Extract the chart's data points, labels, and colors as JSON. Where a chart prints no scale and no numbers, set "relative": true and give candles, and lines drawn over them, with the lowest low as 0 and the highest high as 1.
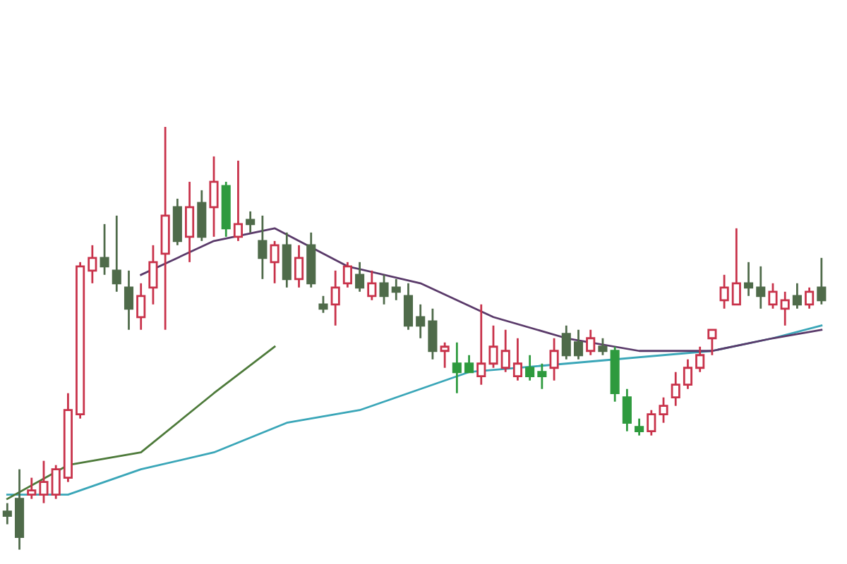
{
  "chart_data": {
    "type": "candlestick",
    "relative": true,
    "categories": [
      null,
      null,
      null,
      null,
      null,
      null,
      null,
      null,
      null,
      null,
      null,
      null,
      null,
      null,
      null,
      null,
      null,
      null,
      null,
      null,
      null,
      null,
      null,
      null,
      null,
      null,
      null,
      null,
      null,
      null,
      null,
      null,
      null,
      null,
      null,
      null,
      null,
      null,
      null,
      null,
      null,
      null,
      null,
      null,
      null,
      null,
      null,
      null,
      null,
      null,
      null,
      null,
      null,
      null,
      null,
      null,
      null,
      null,
      null,
      null,
      null,
      null,
      null,
      null,
      null,
      null,
      null,
      null
    ],
    "ohlc": [
      [
        0.09,
        0.11,
        0.06,
        0.08
      ],
      [
        0.12,
        0.19,
        0,
        0.03
      ],
      [
        0.13,
        0.17,
        0.12,
        0.14
      ],
      [
        0.13,
        0.21,
        0.11,
        0.16
      ],
      [
        0.13,
        0.2,
        0.12,
        0.19
      ],
      [
        0.17,
        0.37,
        0.16,
        0.33
      ],
      [
        0.32,
        0.68,
        0.31,
        0.67
      ],
      [
        0.66,
        0.72,
        0.63,
        0.69
      ],
      [
        0.69,
        0.77,
        0.65,
        0.67
      ],
      [
        0.66,
        0.79,
        0.61,
        0.63
      ],
      [
        0.62,
        0.66,
        0.52,
        0.57
      ],
      [
        0.55,
        0.63,
        0.52,
        0.6
      ],
      [
        0.62,
        0.72,
        0.58,
        0.68
      ],
      [
        0.7,
        1,
        0.52,
        0.79
      ],
      [
        0.81,
        0.83,
        0.72,
        0.73
      ],
      [
        0.74,
        0.87,
        0.68,
        0.81
      ],
      [
        0.82,
        0.85,
        0.73,
        0.74
      ],
      [
        0.81,
        0.93,
        0.74,
        0.87
      ],
      [
        0.86,
        0.87,
        0.74,
        0.76
      ],
      [
        0.74,
        0.92,
        0.73,
        0.77
      ],
      [
        0.78,
        0.8,
        0.75,
        0.77
      ],
      [
        0.73,
        0.79,
        0.64,
        0.69
      ],
      [
        0.68,
        0.73,
        0.63,
        0.72
      ],
      [
        0.72,
        0.75,
        0.62,
        0.64
      ],
      [
        0.64,
        0.72,
        0.62,
        0.69
      ],
      [
        0.72,
        0.75,
        0.62,
        0.63
      ],
      [
        0.58,
        0.6,
        0.56,
        0.57
      ],
      [
        0.58,
        0.66,
        0.53,
        0.62
      ],
      [
        0.63,
        0.68,
        0.62,
        0.67
      ],
      [
        0.65,
        0.68,
        0.61,
        0.62
      ],
      [
        0.6,
        0.66,
        0.59,
        0.63
      ],
      [
        0.63,
        0.65,
        0.58,
        0.6
      ],
      [
        0.62,
        0.64,
        0.59,
        0.61
      ],
      [
        0.6,
        0.63,
        0.52,
        0.53
      ],
      [
        0.55,
        0.58,
        0.5,
        0.53
      ],
      [
        0.54,
        0.57,
        0.45,
        0.47
      ],
      [
        0.47,
        0.49,
        0.43,
        0.48
      ],
      [
        0.44,
        0.49,
        0.37,
        0.42
      ],
      [
        0.44,
        0.46,
        0.42,
        0.42
      ],
      [
        0.41,
        0.58,
        0.39,
        0.44
      ],
      [
        0.44,
        0.53,
        0.43,
        0.48
      ],
      [
        0.43,
        0.52,
        0.42,
        0.47
      ],
      [
        0.41,
        0.5,
        0.4,
        0.44
      ],
      [
        0.43,
        0.46,
        0.4,
        0.41
      ],
      [
        0.42,
        0.44,
        0.38,
        0.41
      ],
      [
        0.43,
        0.5,
        0.4,
        0.47
      ],
      [
        0.51,
        0.53,
        0.45,
        0.46
      ],
      [
        0.49,
        0.52,
        0.45,
        0.46
      ],
      [
        0.47,
        0.52,
        0.46,
        0.5
      ],
      [
        0.48,
        0.5,
        0.46,
        0.47
      ],
      [
        0.47,
        0.48,
        0.35,
        0.37
      ],
      [
        0.36,
        0.38,
        0.28,
        0.3
      ],
      [
        0.29,
        0.31,
        0.27,
        0.28
      ],
      [
        0.28,
        0.33,
        0.27,
        0.32
      ],
      [
        0.32,
        0.36,
        0.3,
        0.34
      ],
      [
        0.36,
        0.42,
        0.34,
        0.39
      ],
      [
        0.39,
        0.45,
        0.38,
        0.43
      ],
      [
        0.43,
        0.48,
        0.42,
        0.46
      ],
      [
        0.5,
        0.52,
        0.46,
        0.52
      ],
      [
        0.59,
        0.65,
        0.57,
        0.62
      ],
      [
        0.58,
        0.76,
        0.58,
        0.63
      ],
      [
        0.63,
        0.68,
        0.6,
        0.62
      ],
      [
        0.62,
        0.67,
        0.57,
        0.6
      ],
      [
        0.58,
        0.63,
        0.57,
        0.61
      ],
      [
        0.57,
        0.61,
        0.53,
        0.59
      ],
      [
        0.6,
        0.63,
        0.57,
        0.58
      ],
      [
        0.58,
        0.62,
        0.57,
        0.61
      ],
      [
        0.62,
        0.69,
        0.58,
        0.59
      ]
    ],
    "colors": [
      "#4f6b4a",
      "#4f6b4a",
      "#c8324a",
      "#c8324a",
      "#c8324a",
      "#c8324a",
      "#c8324a",
      "#c8324a",
      "#4f6b4a",
      "#4f6b4a",
      "#4f6b4a",
      "#c8324a",
      "#c8324a",
      "#c8324a",
      "#4f6b4a",
      "#c8324a",
      "#4f6b4a",
      "#c8324a",
      "#2e9a3e",
      "#c8324a",
      "#4f6b4a",
      "#4f6b4a",
      "#c8324a",
      "#4f6b4a",
      "#c8324a",
      "#4f6b4a",
      "#4f6b4a",
      "#c8324a",
      "#c8324a",
      "#4f6b4a",
      "#c8324a",
      "#4f6b4a",
      "#4f6b4a",
      "#4f6b4a",
      "#4f6b4a",
      "#4f6b4a",
      "#c8324a",
      "#2e9a3e",
      "#2e9a3e",
      "#c8324a",
      "#c8324a",
      "#c8324a",
      "#c8324a",
      "#2e9a3e",
      "#2e9a3e",
      "#c8324a",
      "#4f6b4a",
      "#4f6b4a",
      "#c8324a",
      "#4f6b4a",
      "#2e9a3e",
      "#2e9a3e",
      "#2e9a3e",
      "#c8324a",
      "#c8324a",
      "#c8324a",
      "#c8324a",
      "#c8324a",
      "#c8324a",
      "#c8324a",
      "#c8324a",
      "#4f6b4a",
      "#4f6b4a",
      "#c8324a",
      "#c8324a",
      "#4f6b4a",
      "#c8324a",
      "#4f6b4a"
    ],
    "series": [
      {
        "type": "line",
        "color": "#3aa6b8",
        "values": [
          0.13,
          null,
          null,
          null,
          null,
          0.13,
          null,
          null,
          null,
          null,
          null,
          0.19,
          null,
          null,
          null,
          null,
          null,
          0.23,
          null,
          null,
          null,
          null,
          null,
          0.3,
          null,
          null,
          null,
          null,
          null,
          0.33,
          null,
          null,
          null,
          null,
          0.38,
          null,
          null,
          null,
          0.42,
          null,
          null,
          null,
          null,
          null,
          null,
          null,
          0.44,
          null,
          null,
          null,
          0.45,
          null,
          null,
          null,
          null,
          null,
          null,
          null,
          0.47,
          null,
          null,
          null,
          null,
          0.5,
          null,
          null,
          null,
          0.53
        ]
      },
      {
        "type": "line",
        "color": "#4d7a3a",
        "values": [
          0.12,
          null,
          null,
          null,
          null,
          0.2,
          null,
          null,
          null,
          null,
          null,
          0.23,
          null,
          null,
          null,
          null,
          null,
          0.37,
          null,
          null,
          null,
          null,
          0.48,
          null,
          null,
          null,
          null,
          null,
          null,
          null,
          null,
          null,
          null,
          null,
          null,
          null,
          null,
          null,
          null,
          null,
          null,
          null,
          null,
          null,
          null,
          null,
          null,
          null,
          null,
          null,
          null,
          null,
          null,
          null,
          null,
          null,
          null,
          null,
          null,
          null,
          null,
          null,
          null,
          null,
          null,
          null,
          null,
          null
        ]
      },
      {
        "type": "line",
        "color": "#5a3a6a",
        "values": [
          null,
          null,
          null,
          null,
          null,
          null,
          null,
          null,
          null,
          null,
          null,
          0.65,
          null,
          null,
          null,
          null,
          null,
          0.73,
          null,
          null,
          null,
          null,
          0.76,
          null,
          null,
          null,
          null,
          null,
          0.67,
          null,
          null,
          null,
          null,
          null,
          0.63,
          null,
          null,
          null,
          null,
          null,
          0.55,
          null,
          null,
          null,
          null,
          null,
          0.5,
          null,
          null,
          null,
          null,
          null,
          0.47,
          null,
          null,
          null,
          null,
          null,
          0.47,
          null,
          null,
          null,
          null,
          0.5,
          null,
          null,
          null,
          0.52
        ]
      }
    ]
  }
}
